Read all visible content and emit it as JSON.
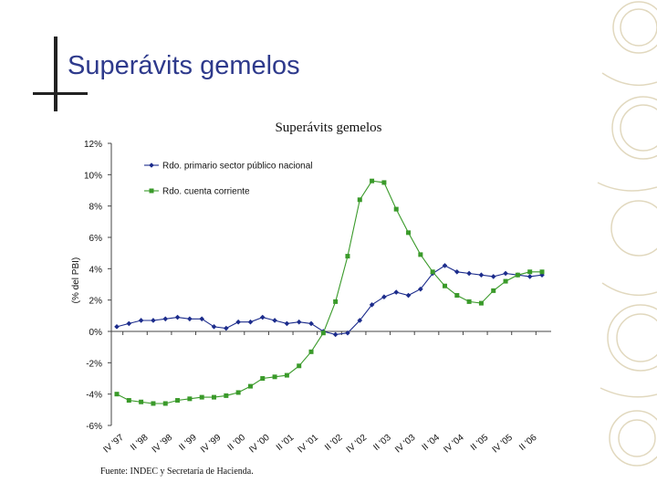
{
  "slide": {
    "title": "Superávits gemelos"
  },
  "source": "Fuente: INDEC y Secretaría de Hacienda.",
  "chart_data": {
    "type": "line",
    "title": "Superávits gemelos",
    "xlabel": "",
    "ylabel": "(% del PBI)",
    "ylim": [
      -6,
      12
    ],
    "yticks": [
      12,
      10,
      8,
      6,
      4,
      2,
      0,
      -2,
      -4,
      -6
    ],
    "ytick_labels": [
      "12%",
      "10%",
      "8%",
      "6%",
      "4%",
      "2%",
      "0%",
      "-2%",
      "-4%",
      "-6%"
    ],
    "legend_position": "top-left",
    "grid": false,
    "x_tick_labels": [
      "IV '97",
      "II '98",
      "IV '98",
      "II '99",
      "IV '99",
      "II '00",
      "IV '00",
      "II '01",
      "IV '01",
      "II '02",
      "IV '02",
      "II '03",
      "IV '03",
      "II '04",
      "IV '04",
      "II '05",
      "IV '05",
      "II '06"
    ],
    "categories": [
      "IV '97",
      "I '98",
      "II '98",
      "III '98",
      "IV '98",
      "I '99",
      "II '99",
      "III '99",
      "IV '99",
      "I '00",
      "II '00",
      "III '00",
      "IV '00",
      "I '01",
      "II '01",
      "III '01",
      "IV '01",
      "I '02",
      "II '02",
      "III '02",
      "IV '02",
      "I '03",
      "II '03",
      "III '03",
      "IV '03",
      "I '04",
      "II '04",
      "III '04",
      "IV '04",
      "I '05",
      "II '05",
      "III '05",
      "IV '05",
      "I '06",
      "II '06",
      "III '06"
    ],
    "series": [
      {
        "name": "Rdo. primario sector público nacional",
        "color": "#1c2c8c",
        "marker": "diamond",
        "values": [
          0.3,
          0.5,
          0.7,
          0.7,
          0.8,
          0.9,
          0.8,
          0.8,
          0.3,
          0.2,
          0.6,
          0.6,
          0.9,
          0.7,
          0.5,
          0.6,
          0.5,
          0.0,
          -0.2,
          -0.1,
          0.7,
          1.7,
          2.2,
          2.5,
          2.3,
          2.7,
          3.7,
          4.2,
          3.8,
          3.7,
          3.6,
          3.5,
          3.7,
          3.6,
          3.5,
          3.6
        ]
      },
      {
        "name": "Rdo. cuenta corriente",
        "color": "#3a9a2a",
        "marker": "square",
        "values": [
          -4.0,
          -4.4,
          -4.5,
          -4.6,
          -4.6,
          -4.4,
          -4.3,
          -4.2,
          -4.2,
          -4.1,
          -3.9,
          -3.5,
          -3.0,
          -2.9,
          -2.8,
          -2.2,
          -1.3,
          -0.1,
          1.9,
          4.8,
          8.4,
          9.6,
          9.5,
          7.8,
          6.3,
          4.9,
          3.8,
          2.9,
          2.3,
          1.9,
          1.8,
          2.6,
          3.2,
          3.6,
          3.8,
          3.8
        ]
      }
    ]
  },
  "decor": {
    "right_strip": "decorative-coin-strip",
    "color": "#c9b98a"
  }
}
